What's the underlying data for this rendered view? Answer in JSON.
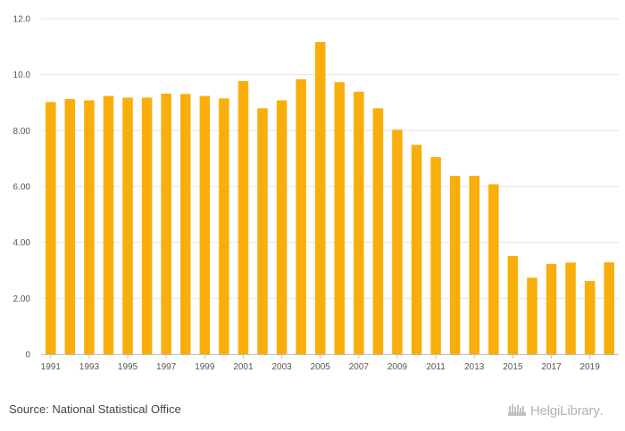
{
  "chart_data": {
    "type": "bar",
    "categories": [
      "1991",
      "1992",
      "1993",
      "1994",
      "1995",
      "1996",
      "1997",
      "1998",
      "1999",
      "2000",
      "2001",
      "2002",
      "2003",
      "2004",
      "2005",
      "2006",
      "2007",
      "2008",
      "2009",
      "2010",
      "2011",
      "2012",
      "2013",
      "2014",
      "2015",
      "2016",
      "2017",
      "2018",
      "2019",
      "2020"
    ],
    "values": [
      9.02,
      9.13,
      9.08,
      9.24,
      9.18,
      9.18,
      9.32,
      9.31,
      9.24,
      9.15,
      9.77,
      8.8,
      9.08,
      9.84,
      11.17,
      9.73,
      9.39,
      8.8,
      8.03,
      7.49,
      7.05,
      6.38,
      6.38,
      6.08,
      3.51,
      2.74,
      3.23,
      3.28,
      2.62,
      3.29
    ],
    "series_color": "#F9AE0B",
    "title": "",
    "xlabel": "",
    "ylabel": "",
    "ylim": [
      0,
      12
    ],
    "y_ticks": [
      0,
      2,
      4,
      6,
      8,
      10,
      12
    ],
    "y_tick_labels": [
      "0",
      "2.00",
      "4.00",
      "6.00",
      "8.00",
      "10.0",
      "12.0"
    ],
    "x_tick_labels": [
      "1991",
      "1993",
      "1995",
      "1997",
      "1999",
      "2001",
      "2003",
      "2005",
      "2007",
      "2009",
      "2011",
      "2013",
      "2015",
      "2017",
      "2019"
    ],
    "grid": true,
    "legend": "none"
  },
  "footer": {
    "source": "Source: National Statistical Office",
    "brand": "HelgiLibrary",
    "brand_dot": "."
  }
}
